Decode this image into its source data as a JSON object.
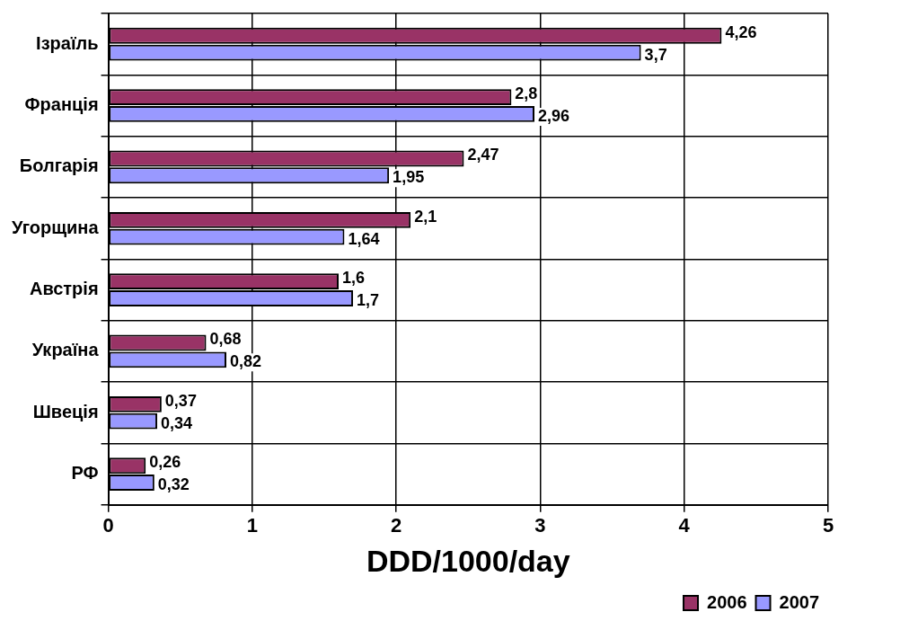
{
  "chart_data": {
    "type": "bar",
    "orientation": "horizontal",
    "xlabel": "DDD/1000/day",
    "categories": [
      "Ізраїль",
      "Франція",
      "Болгарія",
      "Угорщина",
      "Австрія",
      "Україна",
      "Швеція",
      "РФ"
    ],
    "series": [
      {
        "name": "2006",
        "color": "#993366",
        "values": [
          4.26,
          2.8,
          2.47,
          2.1,
          1.6,
          0.68,
          0.37,
          0.26
        ],
        "value_labels": [
          "4,26",
          "2,8",
          "2,47",
          "2,1",
          "1,6",
          "0,68",
          "0,37",
          "0,26"
        ]
      },
      {
        "name": "2007",
        "color": "#9999ff",
        "values": [
          3.7,
          2.96,
          1.95,
          1.64,
          1.7,
          0.82,
          0.34,
          0.32
        ],
        "value_labels": [
          "3,7",
          "2,96",
          "1,95",
          "1,64",
          "1,7",
          "0,82",
          "0,34",
          "0,32"
        ]
      }
    ],
    "xlim": [
      0,
      5
    ],
    "xticks": [
      0,
      1,
      2,
      3,
      4,
      5
    ],
    "grid": true,
    "legend": "bottom right"
  }
}
